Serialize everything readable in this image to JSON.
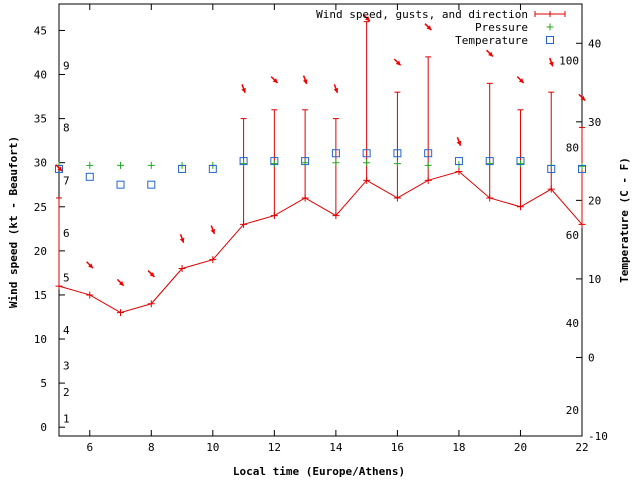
{
  "chart_data": {
    "type": "line",
    "xlabel": "Local time (Europe/Athens)",
    "ylabel_left": "Wind speed (kt - Beaufort)",
    "ylabel_right": "Temperature (C - F)",
    "xlim": [
      5,
      22
    ],
    "x_ticks": [
      6,
      8,
      10,
      12,
      14,
      16,
      18,
      20,
      22
    ],
    "ylim_left": [
      -1,
      48
    ],
    "y_ticks_left": [
      0,
      5,
      10,
      15,
      20,
      25,
      30,
      35,
      40,
      45
    ],
    "beaufort_labels": [
      {
        "label": "1",
        "kt": 1
      },
      {
        "label": "2",
        "kt": 4
      },
      {
        "label": "3",
        "kt": 7
      },
      {
        "label": "4",
        "kt": 11
      },
      {
        "label": "5",
        "kt": 17
      },
      {
        "label": "6",
        "kt": 22
      },
      {
        "label": "7",
        "kt": 28
      },
      {
        "label": "8",
        "kt": 34
      },
      {
        "label": "9",
        "kt": 41
      }
    ],
    "ylim_right_c": [
      -10,
      45
    ],
    "y_ticks_right_c": [
      -10,
      0,
      10,
      20,
      30,
      40
    ],
    "fahrenheit_labels": [
      {
        "label": "20",
        "c": -6.7
      },
      {
        "label": "40",
        "c": 4.4
      },
      {
        "label": "60",
        "c": 15.6
      },
      {
        "label": "80",
        "c": 26.7
      },
      {
        "label": "100",
        "c": 37.8
      }
    ],
    "legend": {
      "wind": "Wind speed, gusts, and direction",
      "pressure": "Pressure",
      "temperature": "Temperature",
      "placement": "top-right"
    },
    "colors": {
      "wind": "#dd0000",
      "pressure": "#22aa22",
      "temperature": "#2266cc",
      "arrow": "#ee0000"
    },
    "x": [
      5,
      6,
      7,
      8,
      9,
      10,
      11,
      12,
      13,
      14,
      15,
      16,
      17,
      18,
      19,
      20,
      21,
      22
    ],
    "wind_speed": [
      16,
      15,
      13,
      14,
      18,
      19,
      23,
      24,
      26,
      24,
      28,
      26,
      28,
      29,
      26,
      25,
      27,
      23
    ],
    "wind_gust": [
      26,
      null,
      null,
      null,
      null,
      null,
      35,
      36,
      36,
      35,
      46,
      38,
      42,
      null,
      39,
      36,
      38,
      34
    ],
    "wind_direction_deg": [
      315,
      315,
      315,
      315,
      340,
      340,
      340,
      315,
      340,
      340,
      315,
      315,
      315,
      340,
      315,
      315,
      340,
      315
    ],
    "pressure_marker_y": [
      29.7,
      29.7,
      29.7,
      29.7,
      29.7,
      29.7,
      29.9,
      29.9,
      30.0,
      30.0,
      30.0,
      29.9,
      29.7,
      29.8,
      29.9,
      29.9,
      29.7,
      29.6
    ],
    "temperature_c": [
      24,
      23,
      22,
      22,
      24,
      24,
      25,
      25,
      25,
      26,
      26,
      26,
      26,
      25,
      25,
      25,
      24,
      24
    ]
  }
}
